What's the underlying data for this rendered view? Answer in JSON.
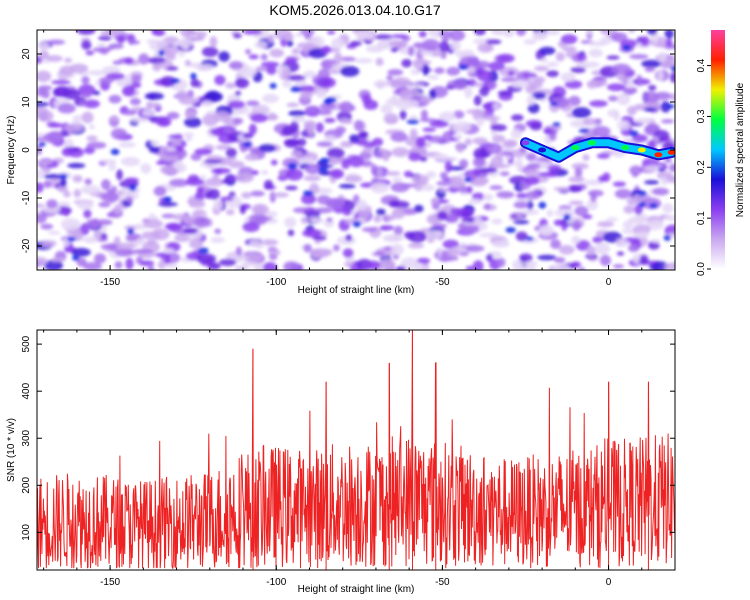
{
  "page_title": "KOM5.2026.013.04.10.G17",
  "chart_data": [
    {
      "type": "heatmap",
      "title": "KOM5.2026.013.04.10.G17",
      "xlabel": "Height of straight line (km)",
      "ylabel": "Frequency (Hz)",
      "xlim": [
        -172,
        20
      ],
      "ylim": [
        -25,
        25
      ],
      "x_ticks": [
        -150,
        -100,
        -50,
        0
      ],
      "y_ticks": [
        -20,
        -10,
        0,
        10,
        20
      ],
      "colorbar": {
        "label": "Normalized spectral amplitude",
        "range": [
          0.0,
          0.47
        ],
        "ticks": [
          0.0,
          0.1,
          0.2,
          0.3,
          0.4
        ],
        "colors": [
          "#ffffff",
          "#c9a8f0",
          "#8a3ef0",
          "#1a10d8",
          "#00c8ff",
          "#00ff40",
          "#f0f000",
          "#ff2000",
          "#ff40a0"
        ]
      },
      "ridge": {
        "x": [
          -25,
          -20,
          -15,
          -10,
          -5,
          0,
          5,
          10,
          15,
          19
        ],
        "y": [
          1.5,
          0,
          -1.5,
          0.5,
          1.5,
          1.5,
          0.5,
          0,
          -1,
          -0.5
        ],
        "amplitude": [
          0.12,
          0.18,
          0.22,
          0.28,
          0.3,
          0.26,
          0.32,
          0.36,
          0.4,
          0.44
        ]
      }
    },
    {
      "type": "line",
      "xlabel": "Height of straight line (km)",
      "ylabel": "SNR (10 * v/v)",
      "xlim": [
        -172,
        20
      ],
      "ylim": [
        20,
        530
      ],
      "x_ticks": [
        -150,
        -100,
        -50,
        0
      ],
      "y_ticks": [
        100,
        200,
        300,
        400,
        500
      ],
      "color": "#ee2222",
      "series": [
        {
          "name": "SNR",
          "x": [
            -172,
            -160,
            -150,
            -140,
            -130,
            -120,
            -110,
            -100,
            -90,
            -80,
            -70,
            -60,
            -50,
            -40,
            -30,
            -20,
            -10,
            0,
            10,
            20
          ],
          "y": [
            120,
            125,
            120,
            115,
            120,
            125,
            150,
            155,
            150,
            160,
            160,
            170,
            160,
            150,
            140,
            145,
            150,
            160,
            165,
            170
          ]
        }
      ],
      "peaks": [
        {
          "x": -107,
          "y": 490
        },
        {
          "x": -85,
          "y": 420
        },
        {
          "x": -66,
          "y": 460
        },
        {
          "x": -59,
          "y": 532
        },
        {
          "x": -52,
          "y": 460
        },
        {
          "x": 0,
          "y": 420
        },
        {
          "x": 12,
          "y": 420
        }
      ]
    }
  ]
}
